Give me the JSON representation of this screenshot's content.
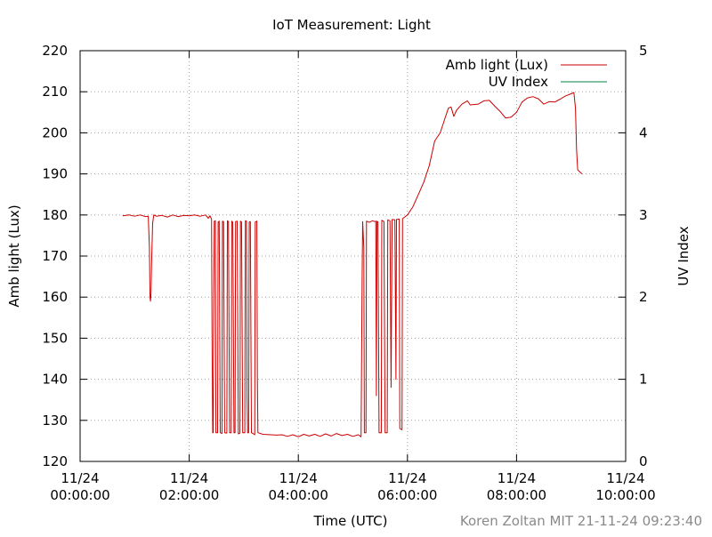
{
  "chart_data": {
    "type": "line",
    "title": "IoT Measurement: Light",
    "xlabel": "Time (UTC)",
    "ylabel": "Amb light (Lux)",
    "y2label": "UV Index",
    "xlim": [
      0,
      10
    ],
    "ylim": [
      120,
      220
    ],
    "y2lim": [
      0,
      5
    ],
    "x_ticks": [
      {
        "x": 0,
        "date": "11/24",
        "time": "00:00:00"
      },
      {
        "x": 2,
        "date": "11/24",
        "time": "02:00:00"
      },
      {
        "x": 4,
        "date": "11/24",
        "time": "04:00:00"
      },
      {
        "x": 6,
        "date": "11/24",
        "time": "06:00:00"
      },
      {
        "x": 8,
        "date": "11/24",
        "time": "08:00:00"
      },
      {
        "x": 10,
        "date": "11/24",
        "time": "10:00:00"
      }
    ],
    "y_ticks": [
      "120",
      "130",
      "140",
      "150",
      "160",
      "170",
      "180",
      "190",
      "200",
      "210",
      "220"
    ],
    "y2_ticks": [
      "0",
      "1",
      "2",
      "3",
      "4",
      "5"
    ],
    "grid": true,
    "legend_position": "top-right",
    "footer": "Koren Zoltan MIT 21-11-24 09:23:40",
    "series": [
      {
        "name": "Amb light (Lux)",
        "color": "#cc0000",
        "axis": "y",
        "points": [
          [
            0.78,
            179.8
          ],
          [
            0.9,
            180.0
          ],
          [
            1.0,
            179.7
          ],
          [
            1.1,
            180.0
          ],
          [
            1.2,
            179.6
          ],
          [
            1.25,
            179.7
          ],
          [
            1.27,
            172
          ],
          [
            1.28,
            160
          ],
          [
            1.29,
            159.0
          ],
          [
            1.3,
            161
          ],
          [
            1.31,
            168
          ],
          [
            1.33,
            178
          ],
          [
            1.35,
            180.0
          ],
          [
            1.4,
            179.7
          ],
          [
            1.5,
            179.9
          ],
          [
            1.6,
            179.5
          ],
          [
            1.7,
            180.0
          ],
          [
            1.8,
            179.6
          ],
          [
            1.9,
            179.9
          ],
          [
            2.0,
            179.8
          ],
          [
            2.1,
            180.0
          ],
          [
            2.2,
            179.7
          ],
          [
            2.3,
            180.0
          ],
          [
            2.35,
            179.2
          ],
          [
            2.38,
            179.8
          ],
          [
            2.41,
            179.0
          ],
          [
            2.42,
            150
          ],
          [
            2.43,
            127
          ],
          [
            2.44,
            127
          ],
          [
            2.45,
            160
          ],
          [
            2.46,
            178.5
          ],
          [
            2.48,
            178.6
          ],
          [
            2.49,
            127
          ],
          [
            2.52,
            127
          ],
          [
            2.53,
            178.3
          ],
          [
            2.55,
            178.5
          ],
          [
            2.57,
            127
          ],
          [
            2.6,
            126.8
          ],
          [
            2.61,
            178.5
          ],
          [
            2.63,
            178.4
          ],
          [
            2.65,
            127
          ],
          [
            2.69,
            126.9
          ],
          [
            2.7,
            178.6
          ],
          [
            2.72,
            178.4
          ],
          [
            2.74,
            127
          ],
          [
            2.77,
            127
          ],
          [
            2.78,
            178.5
          ],
          [
            2.8,
            178.2
          ],
          [
            2.82,
            127
          ],
          [
            2.84,
            127
          ],
          [
            2.85,
            178.4
          ],
          [
            2.88,
            178.5
          ],
          [
            2.9,
            126.7
          ],
          [
            2.93,
            126.9
          ],
          [
            2.94,
            178.5
          ],
          [
            2.96,
            178.3
          ],
          [
            2.98,
            127
          ],
          [
            3.02,
            127
          ],
          [
            3.03,
            178.6
          ],
          [
            3.05,
            178.5
          ],
          [
            3.06,
            136
          ],
          [
            3.07,
            127
          ],
          [
            3.09,
            127
          ],
          [
            3.1,
            178.3
          ],
          [
            3.12,
            178.4
          ],
          [
            3.14,
            127
          ],
          [
            3.17,
            126.8
          ],
          [
            3.2,
            126.5
          ],
          [
            3.21,
            178.3
          ],
          [
            3.24,
            178.5
          ],
          [
            3.25,
            140
          ],
          [
            3.26,
            127
          ],
          [
            3.35,
            126.6
          ],
          [
            3.5,
            126.5
          ],
          [
            3.6,
            126.4
          ],
          [
            3.7,
            126.5
          ],
          [
            3.8,
            126.1
          ],
          [
            3.9,
            126.5
          ],
          [
            4.0,
            126.0
          ],
          [
            4.1,
            126.6
          ],
          [
            4.2,
            126.2
          ],
          [
            4.3,
            126.6
          ],
          [
            4.4,
            126.1
          ],
          [
            4.5,
            126.7
          ],
          [
            4.6,
            126.2
          ],
          [
            4.7,
            126.8
          ],
          [
            4.8,
            126.3
          ],
          [
            4.9,
            126.6
          ],
          [
            5.0,
            126.1
          ],
          [
            5.1,
            126.5
          ],
          [
            5.15,
            126.0
          ],
          [
            5.17,
            165
          ],
          [
            5.18,
            178.4
          ],
          [
            5.2,
            172
          ],
          [
            5.21,
            127
          ],
          [
            5.24,
            127
          ],
          [
            5.25,
            178.5
          ],
          [
            5.3,
            178.2
          ],
          [
            5.36,
            178.6
          ],
          [
            5.4,
            178.4
          ],
          [
            5.42,
            178.5
          ],
          [
            5.43,
            136
          ],
          [
            5.44,
            178.5
          ],
          [
            5.46,
            178.3
          ],
          [
            5.48,
            127
          ],
          [
            5.52,
            127
          ],
          [
            5.53,
            178.7
          ],
          [
            5.57,
            178.4
          ],
          [
            5.59,
            127
          ],
          [
            5.63,
            127
          ],
          [
            5.64,
            178.8
          ],
          [
            5.68,
            178.6
          ],
          [
            5.7,
            138
          ],
          [
            5.72,
            178.9
          ],
          [
            5.77,
            178.8
          ],
          [
            5.79,
            140
          ],
          [
            5.8,
            178.9
          ],
          [
            5.85,
            179.0
          ],
          [
            5.86,
            128
          ],
          [
            5.9,
            127.7
          ],
          [
            5.91,
            179.1
          ],
          [
            5.95,
            179.5
          ],
          [
            6.0,
            180.0
          ],
          [
            6.1,
            182
          ],
          [
            6.2,
            185
          ],
          [
            6.3,
            188
          ],
          [
            6.4,
            192
          ],
          [
            6.5,
            198
          ],
          [
            6.6,
            200
          ],
          [
            6.7,
            204
          ],
          [
            6.75,
            206
          ],
          [
            6.8,
            206.3
          ],
          [
            6.85,
            204
          ],
          [
            6.9,
            205.5
          ],
          [
            7.0,
            207.0
          ],
          [
            7.1,
            207.8
          ],
          [
            7.15,
            206.8
          ],
          [
            7.3,
            207.0
          ],
          [
            7.4,
            207.8
          ],
          [
            7.5,
            207.9
          ],
          [
            7.6,
            206.5
          ],
          [
            7.7,
            205.2
          ],
          [
            7.8,
            203.6
          ],
          [
            7.9,
            203.8
          ],
          [
            8.0,
            205
          ],
          [
            8.1,
            207.5
          ],
          [
            8.2,
            208.5
          ],
          [
            8.3,
            208.8
          ],
          [
            8.4,
            208.3
          ],
          [
            8.5,
            207.0
          ],
          [
            8.6,
            207.6
          ],
          [
            8.7,
            207.5
          ],
          [
            8.8,
            208.2
          ],
          [
            8.9,
            209.0
          ],
          [
            9.0,
            209.5
          ],
          [
            9.05,
            209.8
          ],
          [
            9.08,
            206
          ],
          [
            9.1,
            196
          ],
          [
            9.12,
            191.0
          ],
          [
            9.15,
            190.6
          ],
          [
            9.2,
            190.0
          ]
        ]
      },
      {
        "name": "UV Index",
        "color": "#008040",
        "axis": "y2",
        "points": []
      }
    ]
  }
}
